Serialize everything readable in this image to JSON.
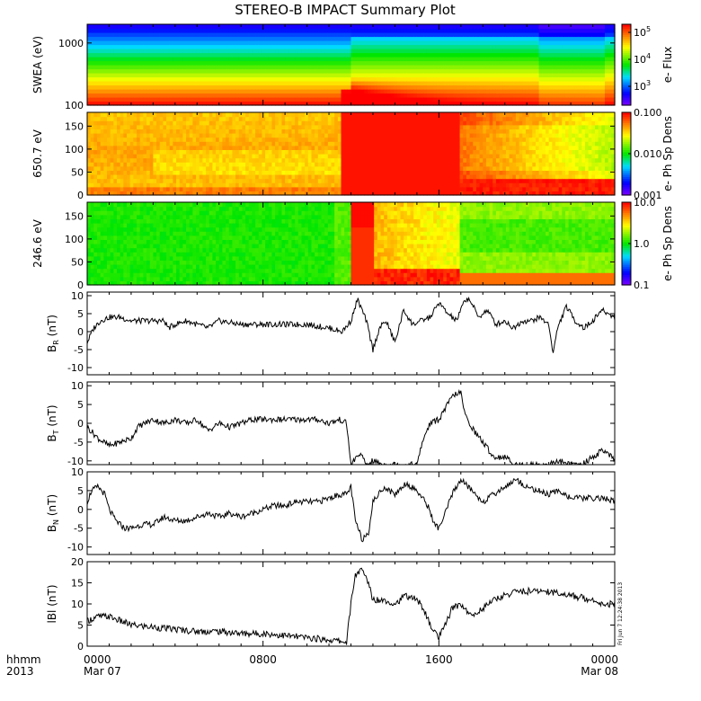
{
  "title": "STEREO-B IMPACT Summary Plot",
  "stamp": "Fri Jun  7 12:24:38 2013",
  "x_axis": {
    "row1_label": "hhmm",
    "row2_label": "2013",
    "ticks": [
      {
        "hour": 0,
        "label": "0000",
        "label2": "Mar 07"
      },
      {
        "hour": 8,
        "label": "0800",
        "label2": ""
      },
      {
        "hour": 16,
        "label": "1600",
        "label2": ""
      },
      {
        "hour": 24,
        "label": "0000",
        "label2": "Mar 08"
      }
    ]
  },
  "chart_data": [
    {
      "type": "heatmap",
      "panel": "swea",
      "ylabel": "SWEA (eV)",
      "yscale": "log",
      "ylim": [
        100,
        2000
      ],
      "yticks": [
        {
          "v": 100,
          "label": "100"
        },
        {
          "v": 1000,
          "label": "1000"
        }
      ],
      "colorbar": {
        "label": "e- Flux",
        "scale": "log",
        "range": [
          200,
          200000
        ],
        "ticks": [
          {
            "v": 1000,
            "base": "10",
            "exp": "3"
          },
          {
            "v": 10000,
            "base": "10",
            "exp": "4"
          },
          {
            "v": 100000,
            "base": "10",
            "exp": "5"
          }
        ]
      }
    },
    {
      "type": "heatmap",
      "panel": "pad650",
      "ylabel": "650.7 eV",
      "ylim": [
        0,
        180
      ],
      "yticks": [
        {
          "v": 0,
          "label": "0"
        },
        {
          "v": 50,
          "label": "50"
        },
        {
          "v": 100,
          "label": "100"
        },
        {
          "v": 150,
          "label": "150"
        }
      ],
      "colorbar": {
        "label": "e- Ph Sp Dens",
        "scale": "log",
        "range": [
          0.001,
          0.1
        ],
        "ticks": [
          {
            "v": 0.001,
            "label": "0.001"
          },
          {
            "v": 0.01,
            "label": "0.010"
          },
          {
            "v": 0.1,
            "label": "0.100"
          }
        ]
      }
    },
    {
      "type": "heatmap",
      "panel": "pad246",
      "ylabel": "246.6 eV",
      "ylim": [
        0,
        180
      ],
      "yticks": [
        {
          "v": 0,
          "label": "0"
        },
        {
          "v": 50,
          "label": "50"
        },
        {
          "v": 100,
          "label": "100"
        },
        {
          "v": 150,
          "label": "150"
        }
      ],
      "colorbar": {
        "label": "e- Ph Sp Dens",
        "scale": "log",
        "range": [
          0.1,
          10
        ],
        "ticks": [
          {
            "v": 0.1,
            "label": "0.1"
          },
          {
            "v": 1,
            "label": "1.0"
          },
          {
            "v": 10,
            "label": "10.0"
          }
        ]
      }
    },
    {
      "type": "line",
      "panel": "br",
      "ylabel": {
        "base": "B",
        "sub": "R",
        "rest": " (nT)"
      },
      "ylim": [
        -12,
        11
      ],
      "yticks": [
        -10,
        -5,
        0,
        5,
        10
      ],
      "x": [
        0,
        0.3,
        0.6,
        1,
        1.5,
        2,
        2.5,
        3,
        3.5,
        3.7,
        4,
        4.5,
        5,
        5.5,
        6,
        7,
        8,
        9,
        10,
        11,
        11.6,
        12,
        12.1,
        12.3,
        12.7,
        13,
        13.3,
        13.6,
        14,
        14.4,
        14.8,
        15.2,
        15.6,
        16,
        16.4,
        16.8,
        17.2,
        17.4,
        17.8,
        18.2,
        18.6,
        19,
        19.4,
        19.8,
        20.2,
        20.6,
        21,
        21.2,
        21.4,
        21.8,
        22.2,
        22.6,
        23,
        23.4,
        23.7,
        24
      ],
      "values": [
        -3,
        1,
        3,
        4,
        4,
        3,
        3,
        3,
        3,
        1,
        2,
        3,
        2,
        1,
        3,
        2,
        2,
        2,
        2,
        1,
        0,
        3,
        5,
        9,
        3,
        -5,
        1,
        3,
        -3,
        6,
        2,
        3,
        4,
        8,
        5,
        3,
        9,
        9,
        4,
        6,
        2,
        3,
        1,
        3,
        3,
        4,
        2,
        -6,
        1,
        7,
        3,
        1,
        3,
        6,
        5,
        4
      ]
    },
    {
      "type": "line",
      "panel": "bt",
      "ylabel": {
        "base": "B",
        "sub": "T",
        "rest": " (nT)"
      },
      "ylim": [
        -11,
        11
      ],
      "yticks": [
        -10,
        -5,
        0,
        5,
        10
      ],
      "x": [
        0,
        0.5,
        1,
        1.5,
        2,
        2.3,
        2.6,
        3,
        3.5,
        4,
        4.5,
        5,
        5.5,
        6,
        6.5,
        7,
        7.5,
        8,
        8.5,
        9,
        9.5,
        10,
        10.5,
        11,
        11.5,
        11.8,
        12,
        12.4,
        12.7,
        13,
        13.5,
        14,
        14.5,
        15,
        15.3,
        15.6,
        16,
        16.3,
        16.6,
        16.8,
        17,
        17.2,
        17.6,
        18,
        18.5,
        19,
        19.5,
        20,
        20.5,
        21,
        21.5,
        22,
        22.5,
        23,
        23.5,
        24
      ],
      "values": [
        -1,
        -4,
        -6,
        -5,
        -4,
        -1,
        0,
        1,
        0,
        1,
        0,
        1,
        -2,
        0,
        -1,
        0,
        1,
        1,
        1,
        1,
        1,
        1,
        1,
        0,
        1,
        0,
        -11,
        -8,
        -11,
        -10,
        -11,
        -11,
        -11,
        -11,
        -4,
        0,
        1,
        4,
        7,
        8,
        8,
        2,
        -2,
        -5,
        -9,
        -9,
        -11,
        -11,
        -11,
        -11,
        -10,
        -11,
        -11,
        -9,
        -7,
        -10
      ]
    },
    {
      "type": "line",
      "panel": "bn",
      "ylabel": {
        "base": "B",
        "sub": "N",
        "rest": " (nT)"
      },
      "ylim": [
        -12,
        10
      ],
      "yticks": [
        -10,
        -5,
        0,
        5,
        10
      ],
      "x": [
        0,
        0.2,
        0.5,
        0.8,
        1,
        1.3,
        1.7,
        2,
        2.5,
        3,
        3.5,
        4,
        4.5,
        5,
        5.5,
        6,
        6.5,
        7,
        7.5,
        8,
        8.5,
        9,
        9.5,
        10,
        10.5,
        11,
        11.5,
        11.8,
        12,
        12.2,
        12.5,
        12.8,
        13,
        13.5,
        14,
        14.5,
        15,
        15.5,
        15.8,
        16,
        16.3,
        16.6,
        17,
        17.5,
        18,
        18.5,
        19,
        19.5,
        20,
        20.5,
        21,
        21.5,
        22,
        22.5,
        23,
        23.5,
        24
      ],
      "values": [
        2,
        5,
        6,
        4,
        0,
        -3,
        -5,
        -5,
        -4,
        -4,
        -2,
        -3,
        -3,
        -2,
        -1,
        -2,
        -1,
        -2,
        -1,
        0,
        1,
        1,
        2,
        2,
        2,
        3,
        4,
        4,
        6,
        -3,
        -8,
        -6,
        2,
        6,
        4,
        7,
        5,
        1,
        -4,
        -5,
        -1,
        4,
        8,
        5,
        2,
        4,
        6,
        8,
        6,
        5,
        4,
        5,
        3,
        3,
        3,
        3,
        2
      ]
    },
    {
      "type": "line",
      "panel": "bmag",
      "ylabel": {
        "base": "lBl",
        "sub": "",
        "rest": " (nT)"
      },
      "ylim": [
        0,
        20
      ],
      "yticks": [
        0,
        5,
        10,
        15,
        20
      ],
      "x": [
        0,
        0.5,
        1,
        1.5,
        2,
        3,
        4,
        5,
        6,
        7,
        8,
        9,
        10,
        11,
        11.8,
        12,
        12.2,
        12.5,
        12.8,
        13,
        13.5,
        14,
        14.5,
        15,
        15.3,
        15.6,
        16,
        16.3,
        16.6,
        17,
        17.5,
        18,
        18.5,
        19,
        19.5,
        20,
        21,
        22,
        23,
        23.5,
        24
      ],
      "values": [
        6,
        7,
        7,
        6,
        5,
        4.5,
        4,
        3.5,
        3.5,
        3,
        3,
        2.5,
        2,
        1.5,
        1,
        10,
        17,
        18,
        15,
        11,
        11,
        10,
        12,
        11,
        9,
        5,
        2,
        5,
        9,
        10,
        7,
        9,
        11,
        12,
        13,
        13,
        13,
        12,
        11,
        10,
        10
      ]
    }
  ]
}
